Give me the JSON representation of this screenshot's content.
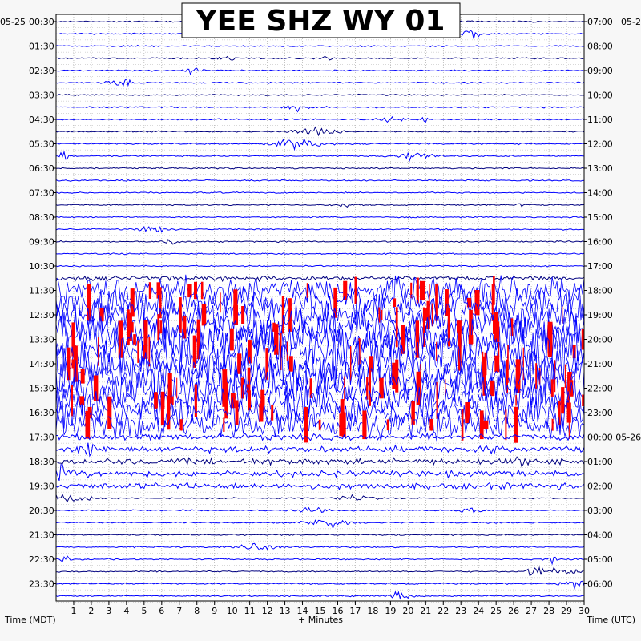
{
  "chart_data": {
    "type": "helicorder",
    "title": "YEE SHZ WY 01",
    "left_date": "05-25",
    "right_date": "05-2",
    "right_date_next_day_label": "00:00 05-26",
    "xlabel": "+ Minutes",
    "left_axis_label": "Time (MDT)",
    "right_axis_label": "Time (UTC)",
    "x_ticks": [
      "1",
      "2",
      "3",
      "4",
      "5",
      "6",
      "7",
      "8",
      "9",
      "10",
      "11",
      "12",
      "13",
      "14",
      "15",
      "16",
      "17",
      "18",
      "19",
      "20",
      "21",
      "22",
      "23",
      "24",
      "25",
      "26",
      "27",
      "28",
      "29",
      "30"
    ],
    "xlim": [
      0,
      30
    ],
    "left_row_labels": [
      "00:30",
      "01:30",
      "02:30",
      "03:30",
      "04:30",
      "05:30",
      "06:30",
      "07:30",
      "08:30",
      "09:30",
      "10:30",
      "11:30",
      "12:30",
      "13:30",
      "14:30",
      "15:30",
      "16:30",
      "17:30",
      "18:30",
      "19:30",
      "20:30",
      "21:30",
      "22:30",
      "23:30"
    ],
    "right_row_labels": [
      "07:00",
      "08:00",
      "09:00",
      "10:00",
      "11:00",
      "12:00",
      "13:00",
      "14:00",
      "15:00",
      "16:00",
      "17:00",
      "18:00",
      "19:00",
      "20:00",
      "21:00",
      "22:00",
      "23:00",
      "00:00 05-26",
      "01:00",
      "02:00",
      "03:00",
      "04:00",
      "05:00",
      "06:00"
    ],
    "trace_count": 48,
    "minutes_per_trace": 30,
    "trace_colors": [
      "#000080",
      "#000000",
      "#ff0000",
      "#0000ff"
    ],
    "saturated_window_rows": [
      22,
      33
    ],
    "grid": true
  }
}
